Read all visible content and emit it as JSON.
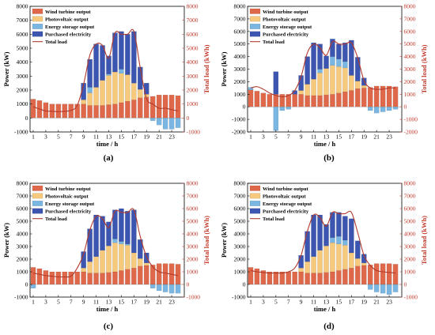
{
  "colors": {
    "wind": "#e0684a",
    "pv": "#f6c97c",
    "storage": "#7ab6e2",
    "purchased": "#3b55b0",
    "load": "#b03a2e",
    "right_axis": "#c0392b"
  },
  "chart_data": [
    {
      "type": "bar",
      "panel_label": "(a)",
      "xlabel": "time / h",
      "ylabel": "Power (kW)",
      "ylabel_right": "Total load (kWh)",
      "ylim": [
        -1000,
        8000
      ],
      "ylim_right": [
        -1000,
        8000
      ],
      "xticks": [
        "1",
        "3",
        "5",
        "7",
        "9",
        "11",
        "13",
        "15",
        "17",
        "19",
        "21",
        "23"
      ],
      "yticks": [
        "-1000",
        "0",
        "1000",
        "2000",
        "3000",
        "4000",
        "5000",
        "6000",
        "7000",
        "8000"
      ],
      "legend": [
        "Wind turbine output",
        "Photovoltaic output",
        "Energy storage output",
        "Purchased electricity",
        "Total load"
      ],
      "x": [
        1,
        2,
        3,
        4,
        5,
        6,
        7,
        8,
        9,
        10,
        11,
        12,
        13,
        14,
        15,
        16,
        17,
        18,
        19,
        20,
        21,
        22,
        23,
        24
      ],
      "series": [
        {
          "name": "Wind turbine output",
          "values": [
            1350,
            1250,
            1100,
            1000,
            1000,
            1000,
            1000,
            1000,
            1000,
            900,
            900,
            900,
            950,
            1000,
            1100,
            1200,
            1300,
            1450,
            1500,
            1550,
            1650,
            1650,
            1650,
            1600
          ]
        },
        {
          "name": "Photovoltaic output",
          "values": [
            0,
            0,
            0,
            0,
            0,
            0,
            0,
            0,
            300,
            900,
            1300,
            1800,
            2100,
            2300,
            2100,
            1900,
            1200,
            600,
            200,
            0,
            0,
            0,
            0,
            0
          ]
        },
        {
          "name": "Energy storage output",
          "values": [
            0,
            0,
            0,
            0,
            0,
            0,
            0,
            0,
            0,
            400,
            0,
            0,
            100,
            0,
            300,
            0,
            0,
            0,
            0,
            -200,
            -500,
            -800,
            -800,
            -700
          ]
        },
        {
          "name": "Purchased electricity",
          "values": [
            0,
            0,
            0,
            0,
            0,
            0,
            0,
            0,
            1200,
            2000,
            3100,
            2500,
            1300,
            2800,
            2700,
            2900,
            3700,
            1600,
            800,
            0,
            0,
            0,
            0,
            0
          ]
        },
        {
          "name": "Total load",
          "values": [
            800,
            650,
            500,
            480,
            450,
            480,
            550,
            900,
            2400,
            4500,
            5300,
            5200,
            4300,
            6100,
            6000,
            6000,
            6200,
            3600,
            1400,
            1000,
            700,
            700,
            600,
            500
          ]
        }
      ]
    },
    {
      "type": "bar",
      "panel_label": "(b)",
      "xlabel": "time / h",
      "ylabel": "Power (kW)",
      "ylabel_right": "Total load (kWh)",
      "ylim": [
        -2000,
        8000
      ],
      "ylim_right": [
        -2000,
        8000
      ],
      "xticks": [
        "1",
        "3",
        "5",
        "7",
        "9",
        "11",
        "13",
        "15",
        "17",
        "19",
        "21",
        "23"
      ],
      "yticks": [
        "-2000",
        "-1000",
        "0",
        "1000",
        "2000",
        "3000",
        "4000",
        "5000",
        "6000",
        "7000",
        "8000"
      ],
      "legend": [
        "Wind turbine output",
        "Photovoltaic output",
        "Energy storage output",
        "Purchased electricity",
        "Total load"
      ],
      "x": [
        1,
        2,
        3,
        4,
        5,
        6,
        7,
        8,
        9,
        10,
        11,
        12,
        13,
        14,
        15,
        16,
        17,
        18,
        19,
        20,
        21,
        22,
        23,
        24
      ],
      "series": [
        {
          "name": "Wind turbine output",
          "values": [
            1350,
            1250,
            1100,
            1000,
            1000,
            1000,
            1000,
            1000,
            1000,
            900,
            900,
            900,
            950,
            1000,
            1100,
            1200,
            1300,
            1450,
            1500,
            1550,
            1650,
            1650,
            1650,
            1600
          ]
        },
        {
          "name": "Photovoltaic output",
          "values": [
            0,
            0,
            0,
            0,
            0,
            0,
            0,
            0,
            300,
            900,
            1300,
            1800,
            2100,
            2300,
            2100,
            1900,
            1200,
            600,
            200,
            0,
            0,
            0,
            0,
            0
          ]
        },
        {
          "name": "Energy storage output",
          "values": [
            200,
            0,
            0,
            0,
            -1900,
            -300,
            -200,
            0,
            0,
            0,
            0,
            300,
            0,
            700,
            600,
            500,
            0,
            0,
            0,
            -300,
            -500,
            -400,
            -300,
            -200
          ]
        },
        {
          "name": "Purchased electricity",
          "values": [
            0,
            0,
            0,
            0,
            1800,
            0,
            0,
            300,
            1200,
            2200,
            2900,
            2000,
            1000,
            1400,
            1200,
            1500,
            2800,
            1900,
            600,
            0,
            0,
            0,
            0,
            0
          ]
        },
        {
          "name": "Total load",
          "values": [
            1500,
            1600,
            1400,
            1100,
            900,
            800,
            900,
            1300,
            2400,
            4300,
            5000,
            4700,
            4100,
            5200,
            5000,
            5000,
            5100,
            3900,
            2100,
            1500,
            1400,
            1400,
            1500,
            1500
          ]
        }
      ]
    },
    {
      "type": "bar",
      "panel_label": "(c)",
      "xlabel": "time / h",
      "ylabel": "Power (kW)",
      "ylabel_right": "Total load (kWh)",
      "ylim": [
        -1000,
        8000
      ],
      "ylim_right": [
        -1000,
        8000
      ],
      "xticks": [
        "1",
        "3",
        "5",
        "7",
        "9",
        "11",
        "13",
        "15",
        "17",
        "19",
        "21",
        "23"
      ],
      "yticks": [
        "-1000",
        "0",
        "1000",
        "2000",
        "3000",
        "4000",
        "5000",
        "6000",
        "7000",
        "8000"
      ],
      "legend": [
        "Wind turbine output",
        "Photovoltaic output",
        "Energy storage output",
        "Purchased electricity",
        "Total load"
      ],
      "x": [
        1,
        2,
        3,
        4,
        5,
        6,
        7,
        8,
        9,
        10,
        11,
        12,
        13,
        14,
        15,
        16,
        17,
        18,
        19,
        20,
        21,
        22,
        23,
        24
      ],
      "series": [
        {
          "name": "Wind turbine output",
          "values": [
            1350,
            1250,
            1100,
            1000,
            1000,
            1000,
            1000,
            1000,
            1000,
            900,
            900,
            900,
            950,
            1000,
            1100,
            1200,
            1300,
            1450,
            1500,
            1550,
            1650,
            1650,
            1650,
            1600
          ]
        },
        {
          "name": "Photovoltaic output",
          "values": [
            0,
            0,
            0,
            0,
            0,
            0,
            0,
            0,
            300,
            900,
            1300,
            1800,
            2100,
            2300,
            2100,
            1900,
            1200,
            600,
            200,
            0,
            0,
            0,
            0,
            0
          ]
        },
        {
          "name": "Energy storage output",
          "values": [
            -300,
            0,
            0,
            0,
            0,
            0,
            0,
            0,
            0,
            0,
            0,
            0,
            0,
            300,
            200,
            100,
            0,
            0,
            0,
            -300,
            -500,
            -600,
            -700,
            -700
          ]
        },
        {
          "name": "Purchased electricity",
          "values": [
            0,
            0,
            0,
            0,
            0,
            0,
            0,
            0,
            1300,
            2600,
            3300,
            2700,
            1900,
            2300,
            2600,
            2600,
            3400,
            1500,
            800,
            0,
            0,
            0,
            0,
            0
          ]
        },
        {
          "name": "Total load",
          "values": [
            900,
            800,
            700,
            650,
            600,
            600,
            650,
            1300,
            2400,
            4300,
            5400,
            5200,
            4500,
            5800,
            5700,
            5700,
            5900,
            3800,
            2200,
            1400,
            1000,
            900,
            800,
            700
          ]
        }
      ]
    },
    {
      "type": "bar",
      "panel_label": "(d)",
      "xlabel": "time / h",
      "ylabel": "Power (kW)",
      "ylabel_right": "Total load (kWh)",
      "ylim": [
        -1000,
        8000
      ],
      "ylim_right": [
        -1000,
        8000
      ],
      "xticks": [
        "1",
        "3",
        "5",
        "7",
        "9",
        "11",
        "13",
        "15",
        "17",
        "19",
        "21",
        "23"
      ],
      "yticks": [
        "-1000",
        "0",
        "1000",
        "2000",
        "3000",
        "4000",
        "5000",
        "6000",
        "7000",
        "8000"
      ],
      "legend": [
        "Wind turbine output",
        "Photovoltaic output",
        "Energy storage output",
        "Purchased electricity",
        "Total load"
      ],
      "x": [
        1,
        2,
        3,
        4,
        5,
        6,
        7,
        8,
        9,
        10,
        11,
        12,
        13,
        14,
        15,
        16,
        17,
        18,
        19,
        20,
        21,
        22,
        23,
        24
      ],
      "series": [
        {
          "name": "Wind turbine output",
          "values": [
            1350,
            1250,
            1100,
            1000,
            1000,
            1000,
            1000,
            1000,
            1000,
            900,
            900,
            900,
            950,
            1000,
            1100,
            1200,
            1300,
            1450,
            1500,
            1550,
            1650,
            1650,
            1650,
            1600
          ]
        },
        {
          "name": "Photovoltaic output",
          "values": [
            0,
            0,
            0,
            0,
            0,
            0,
            0,
            0,
            300,
            900,
            1300,
            1800,
            2100,
            2300,
            2100,
            1900,
            1200,
            600,
            200,
            0,
            0,
            0,
            0,
            0
          ]
        },
        {
          "name": "Energy storage output",
          "values": [
            0,
            0,
            0,
            0,
            0,
            0,
            0,
            0,
            0,
            0,
            0,
            0,
            0,
            400,
            600,
            400,
            0,
            0,
            0,
            -400,
            -600,
            -700,
            -800,
            -600
          ]
        },
        {
          "name": "Purchased electricity",
          "values": [
            0,
            0,
            0,
            0,
            0,
            0,
            0,
            0,
            1000,
            2400,
            3300,
            2800,
            1700,
            2000,
            1900,
            1900,
            2700,
            1400,
            700,
            0,
            0,
            0,
            0,
            0
          ]
        },
        {
          "name": "Total load",
          "values": [
            1100,
            1000,
            950,
            900,
            900,
            900,
            1000,
            1300,
            2300,
            4200,
            5500,
            5300,
            4600,
            5700,
            5600,
            5600,
            5700,
            4100,
            2300,
            1500,
            1100,
            1000,
            950,
            900
          ]
        }
      ]
    }
  ]
}
